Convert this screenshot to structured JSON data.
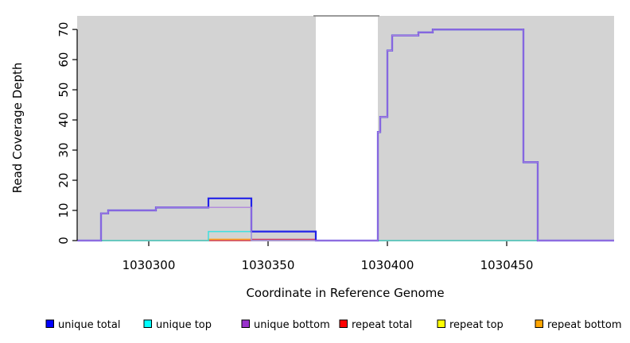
{
  "figure": {
    "plot_background": "#D3D3D3",
    "masked_band_fill": "#FFFFFF",
    "masked_band_top_border": "#8C8C8C",
    "axis_color": "#000000"
  },
  "chart_data": {
    "type": "line",
    "subtype": "step-coverage",
    "title": "",
    "xlabel": "Coordinate in Reference Genome",
    "ylabel": "Read Coverage Depth",
    "xlim": [
      1030270,
      1030495
    ],
    "ylim": [
      0,
      74.5
    ],
    "x_ticks": [
      1030300,
      1030350,
      1030400,
      1030450
    ],
    "y_ticks": [
      0,
      10,
      20,
      30,
      40,
      50,
      60,
      70
    ],
    "grid": false,
    "legend_position": "bottom",
    "masked_region": {
      "x_start": 1030370,
      "x_end": 1030396
    },
    "series": [
      {
        "name": "unique total",
        "key": "unique_total",
        "color": "#0000FF",
        "stroke": "#2222E8",
        "width": 2.2,
        "steps": [
          [
            1030270,
            0
          ],
          [
            1030280,
            9
          ],
          [
            1030283,
            10
          ],
          [
            1030303,
            11
          ],
          [
            1030325,
            14
          ],
          [
            1030343,
            3
          ],
          [
            1030370,
            0
          ],
          [
            1030396,
            36
          ],
          [
            1030397,
            41
          ],
          [
            1030400,
            63
          ],
          [
            1030402,
            68
          ],
          [
            1030413,
            69
          ],
          [
            1030419,
            70
          ],
          [
            1030457,
            26
          ],
          [
            1030463,
            0
          ],
          [
            1030495,
            0
          ]
        ]
      },
      {
        "name": "unique top",
        "key": "unique_top",
        "color": "#00FFFF",
        "stroke": "#3FE0E0",
        "width": 1.5,
        "steps": [
          [
            1030270,
            0
          ],
          [
            1030325,
            3
          ],
          [
            1030343,
            0
          ],
          [
            1030495,
            0
          ]
        ]
      },
      {
        "name": "unique bottom",
        "key": "unique_bottom",
        "color": "#9932CC",
        "stroke": "#B184DC",
        "width": 1.4,
        "steps": [
          [
            1030270,
            0
          ],
          [
            1030280,
            9
          ],
          [
            1030283,
            10
          ],
          [
            1030303,
            11
          ],
          [
            1030343,
            0
          ],
          [
            1030370,
            0
          ],
          [
            1030396,
            36
          ],
          [
            1030397,
            41
          ],
          [
            1030400,
            63
          ],
          [
            1030402,
            68
          ],
          [
            1030413,
            69
          ],
          [
            1030419,
            70
          ],
          [
            1030457,
            26
          ],
          [
            1030463,
            0
          ],
          [
            1030495,
            0
          ]
        ]
      },
      {
        "name": "repeat total",
        "key": "repeat_total",
        "color": "#FF0000",
        "stroke": "#D23B5F",
        "width": 1.4,
        "steps": [
          [
            1030270,
            0
          ],
          [
            1030343,
            0.4
          ],
          [
            1030370,
            0
          ],
          [
            1030495,
            0
          ]
        ]
      },
      {
        "name": "repeat top",
        "key": "repeat_top",
        "color": "#FFFF00",
        "stroke": "#E8E83A",
        "width": 1.4,
        "steps": [
          [
            1030270,
            0
          ],
          [
            1030495,
            0
          ]
        ]
      },
      {
        "name": "repeat bottom",
        "key": "repeat_bottom",
        "color": "#FFA500",
        "stroke": "#FFA51E",
        "width": 1.6,
        "steps": [
          [
            1030270,
            0
          ],
          [
            1030325,
            0.4
          ],
          [
            1030343,
            0
          ],
          [
            1030495,
            0
          ]
        ]
      }
    ],
    "draw_order_below_mask": [
      "repeat_top",
      "repeat_bottom",
      "repeat_total",
      "unique_top"
    ],
    "draw_order_above_mask": [
      "unique_total",
      "unique_bottom"
    ]
  }
}
